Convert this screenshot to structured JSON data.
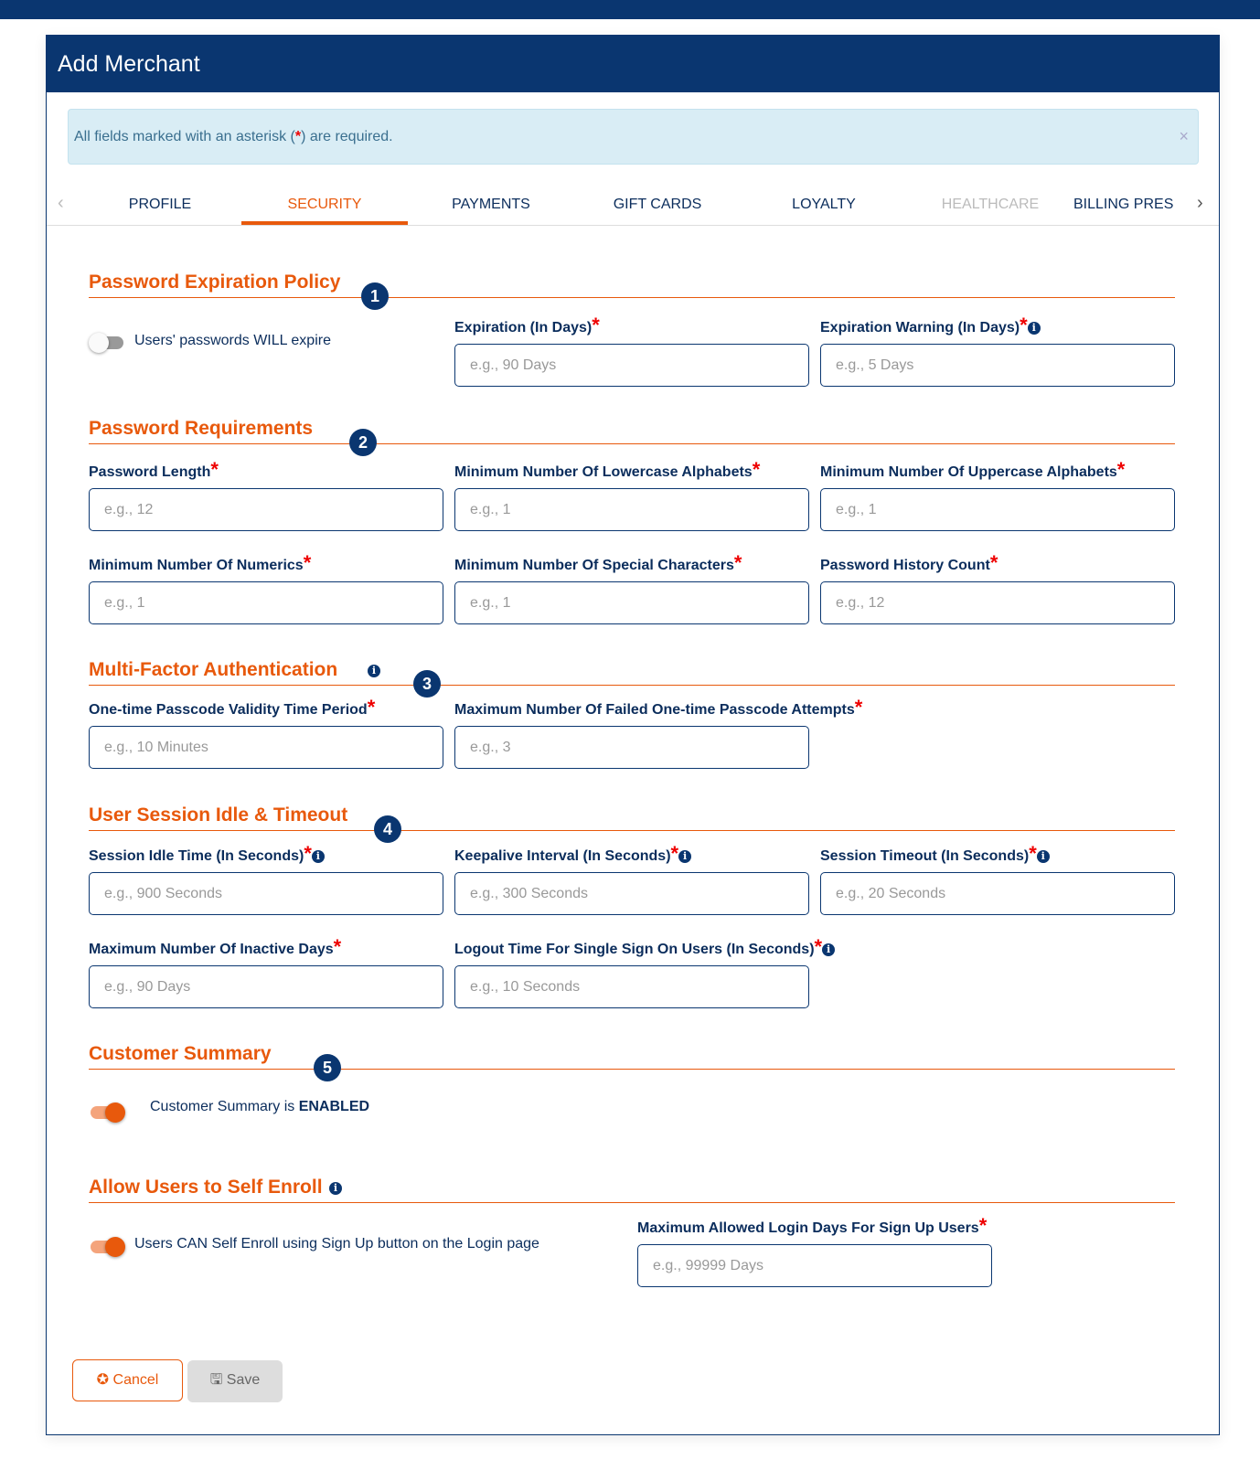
{
  "header": {
    "title": "Add Merchant"
  },
  "alert": {
    "text_before": "All fields marked with an asterisk (",
    "star": "*",
    "text_after": ") are required.",
    "close": "×"
  },
  "tabs": [
    {
      "label": "PROFILE"
    },
    {
      "label": "SECURITY",
      "active": true
    },
    {
      "label": "PAYMENTS"
    },
    {
      "label": "GIFT CARDS"
    },
    {
      "label": "LOYALTY"
    },
    {
      "label": "HEALTHCARE",
      "disabled": true
    },
    {
      "label": "BILLING PRES"
    }
  ],
  "colors": {
    "brand": "#0a3670",
    "accent": "#e8590c",
    "required": "#ee0000"
  },
  "sections": {
    "s1": {
      "title": "Password Expiration Policy",
      "badge": "1",
      "toggle_label": "Users' passwords WILL expire",
      "toggle_on": false,
      "fields": [
        {
          "label": "Expiration (In Days)",
          "placeholder": "e.g., 90 Days"
        },
        {
          "label": "Expiration Warning (In Days)",
          "placeholder": "e.g., 5 Days"
        }
      ]
    },
    "s2": {
      "title": "Password Requirements",
      "badge": "2",
      "fields": [
        {
          "label": "Password Length",
          "placeholder": "e.g., 12"
        },
        {
          "label": "Minimum Number Of Lowercase Alphabets",
          "placeholder": "e.g., 1"
        },
        {
          "label": "Minimum Number Of Uppercase Alphabets",
          "placeholder": "e.g., 1"
        },
        {
          "label": "Minimum Number Of Numerics",
          "placeholder": "e.g., 1"
        },
        {
          "label": "Minimum Number Of Special Characters",
          "placeholder": "e.g., 1"
        },
        {
          "label": "Password History Count",
          "placeholder": "e.g., 12"
        }
      ]
    },
    "s3": {
      "title": "Multi-Factor Authentication",
      "badge": "3",
      "fields": [
        {
          "label": "One-time Passcode Validity Time Period",
          "placeholder": "e.g., 10 Minutes"
        },
        {
          "label": "Maximum Number Of Failed One-time Passcode Attempts",
          "placeholder": "e.g., 3"
        }
      ]
    },
    "s4": {
      "title": "User Session Idle & Timeout",
      "badge": "4",
      "fields": [
        {
          "label": "Session Idle Time (In Seconds)",
          "placeholder": "e.g., 900 Seconds"
        },
        {
          "label": "Keepalive Interval (In Seconds)",
          "placeholder": "e.g., 300 Seconds"
        },
        {
          "label": "Session Timeout (In Seconds)",
          "placeholder": "e.g., 20 Seconds"
        },
        {
          "label": "Maximum Number Of Inactive Days",
          "placeholder": "e.g., 90 Days"
        },
        {
          "label": "Logout Time For Single Sign On Users (In Seconds)",
          "placeholder": "e.g., 10 Seconds"
        }
      ]
    },
    "s5": {
      "title": "Customer Summary",
      "badge": "5",
      "toggle_label": "Customer Summary is ",
      "toggle_state": "ENABLED",
      "toggle_on": true
    },
    "s6": {
      "title": "Allow Users to Self Enroll",
      "toggle_label": "Users CAN Self Enroll using Sign Up button on the Login page",
      "toggle_on": true,
      "fields": [
        {
          "label": "Maximum Allowed Login Days For Sign Up Users",
          "placeholder": "e.g., 99999 Days"
        }
      ]
    }
  },
  "req": "*",
  "info": "i",
  "buttons": {
    "cancel": "Cancel",
    "save": "Save"
  }
}
